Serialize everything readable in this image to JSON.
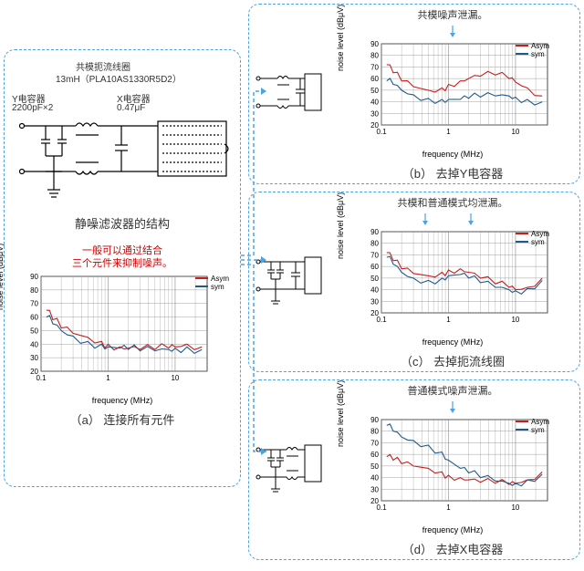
{
  "left": {
    "choke_label": "共模扼流线圈",
    "choke_spec": "13mH（PLA10AS1330R5D2）",
    "ycap_label": "Y电容器",
    "ycap_spec": "2200pF×2",
    "xcap_label": "X电容器",
    "xcap_spec": "0.47μF",
    "filter_title": "静噪滤波器的结构",
    "note_line1": "一般可以通过结合",
    "note_line2": "三个元件来抑制噪声。",
    "caption": "（a） 连接所有元件"
  },
  "legend": {
    "asym": "Asym",
    "sym": "sym",
    "asym_color": "#c81e1e",
    "sym_color": "#1e5a8c"
  },
  "axis": {
    "ylabel": "noise level (dBμV)",
    "xlabel": "frequency (MHz)",
    "yticks": [
      20,
      30,
      40,
      50,
      60,
      70,
      80,
      90
    ],
    "xticks_labels": [
      "0.1",
      "1",
      "10"
    ],
    "ylim": [
      20,
      90
    ],
    "grid_color": "#888",
    "background": "#ffffff"
  },
  "charts": {
    "a": {
      "asym": [
        [
          0.12,
          65
        ],
        [
          0.15,
          58
        ],
        [
          0.2,
          52
        ],
        [
          0.3,
          48
        ],
        [
          0.5,
          45
        ],
        [
          0.8,
          42
        ],
        [
          1,
          40
        ],
        [
          1.5,
          38
        ],
        [
          2,
          37
        ],
        [
          3,
          36
        ],
        [
          5,
          36
        ],
        [
          8,
          37
        ],
        [
          10,
          38
        ],
        [
          15,
          40
        ],
        [
          25,
          38
        ]
      ],
      "sym": [
        [
          0.12,
          60
        ],
        [
          0.15,
          55
        ],
        [
          0.2,
          50
        ],
        [
          0.3,
          46
        ],
        [
          0.5,
          42
        ],
        [
          0.8,
          40
        ],
        [
          1,
          38
        ],
        [
          1.5,
          37
        ],
        [
          2,
          36
        ],
        [
          3,
          35
        ],
        [
          5,
          35
        ],
        [
          8,
          36
        ],
        [
          10,
          37
        ],
        [
          15,
          38
        ],
        [
          25,
          36
        ]
      ]
    },
    "b": {
      "asym": [
        [
          0.12,
          72
        ],
        [
          0.15,
          65
        ],
        [
          0.2,
          58
        ],
        [
          0.3,
          53
        ],
        [
          0.5,
          50
        ],
        [
          0.8,
          52
        ],
        [
          1,
          55
        ],
        [
          1.5,
          58
        ],
        [
          2,
          60
        ],
        [
          3,
          62
        ],
        [
          5,
          63
        ],
        [
          8,
          60
        ],
        [
          10,
          57
        ],
        [
          15,
          52
        ],
        [
          25,
          45
        ]
      ],
      "sym": [
        [
          0.12,
          58
        ],
        [
          0.15,
          55
        ],
        [
          0.2,
          50
        ],
        [
          0.3,
          46
        ],
        [
          0.5,
          43
        ],
        [
          0.8,
          42
        ],
        [
          1,
          42
        ],
        [
          1.5,
          42
        ],
        [
          2,
          43
        ],
        [
          3,
          44
        ],
        [
          5,
          45
        ],
        [
          8,
          45
        ],
        [
          10,
          44
        ],
        [
          15,
          42
        ],
        [
          25,
          40
        ]
      ]
    },
    "c": {
      "asym": [
        [
          0.12,
          72
        ],
        [
          0.15,
          65
        ],
        [
          0.2,
          58
        ],
        [
          0.3,
          54
        ],
        [
          0.5,
          52
        ],
        [
          0.8,
          55
        ],
        [
          1,
          57
        ],
        [
          1.5,
          58
        ],
        [
          2,
          55
        ],
        [
          3,
          50
        ],
        [
          5,
          45
        ],
        [
          8,
          42
        ],
        [
          10,
          40
        ],
        [
          15,
          42
        ],
        [
          25,
          50
        ]
      ],
      "sym": [
        [
          0.12,
          68
        ],
        [
          0.15,
          62
        ],
        [
          0.2,
          55
        ],
        [
          0.3,
          50
        ],
        [
          0.5,
          48
        ],
        [
          0.8,
          50
        ],
        [
          1,
          52
        ],
        [
          1.5,
          53
        ],
        [
          2,
          50
        ],
        [
          3,
          46
        ],
        [
          5,
          42
        ],
        [
          8,
          40
        ],
        [
          10,
          39
        ],
        [
          15,
          41
        ],
        [
          25,
          48
        ]
      ]
    },
    "d": {
      "asym": [
        [
          0.12,
          58
        ],
        [
          0.15,
          55
        ],
        [
          0.2,
          52
        ],
        [
          0.3,
          50
        ],
        [
          0.5,
          48
        ],
        [
          0.8,
          45
        ],
        [
          1,
          42
        ],
        [
          1.5,
          40
        ],
        [
          2,
          38
        ],
        [
          3,
          36
        ],
        [
          5,
          35
        ],
        [
          8,
          34
        ],
        [
          10,
          35
        ],
        [
          15,
          38
        ],
        [
          25,
          45
        ]
      ],
      "sym": [
        [
          0.12,
          85
        ],
        [
          0.15,
          80
        ],
        [
          0.2,
          75
        ],
        [
          0.3,
          72
        ],
        [
          0.5,
          68
        ],
        [
          0.8,
          62
        ],
        [
          1,
          55
        ],
        [
          1.5,
          48
        ],
        [
          2,
          44
        ],
        [
          3,
          40
        ],
        [
          5,
          37
        ],
        [
          8,
          35
        ],
        [
          10,
          35
        ],
        [
          15,
          38
        ],
        [
          25,
          43
        ]
      ]
    }
  },
  "right": [
    {
      "title": "共模噪声泄漏。",
      "caption": "（b） 去掉Y电容器",
      "circuit": "noY",
      "chart": "b"
    },
    {
      "title": "共模和普通模式均泄漏。",
      "caption": "（c） 去掉扼流线圈",
      "circuit": "noChoke",
      "chart": "c"
    },
    {
      "title": "普通模式噪声泄漏。",
      "caption": "（d） 去掉X电容器",
      "circuit": "noX",
      "chart": "d"
    }
  ]
}
